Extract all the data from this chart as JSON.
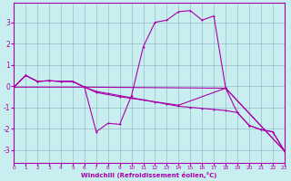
{
  "xlabel": "Windchill (Refroidissement éolien,°C)",
  "bg_color": "#c8eef0",
  "line_color": "#aa00aa",
  "grid_color": "#99bbcc",
  "xlim": [
    0,
    23
  ],
  "ylim": [
    -3.6,
    3.9
  ],
  "yticks": [
    -3,
    -2,
    -1,
    0,
    1,
    2,
    3
  ],
  "xticks": [
    0,
    1,
    2,
    3,
    4,
    5,
    6,
    7,
    8,
    9,
    10,
    11,
    12,
    13,
    14,
    15,
    16,
    17,
    18,
    19,
    20,
    21,
    22,
    23
  ],
  "series1": [
    [
      0,
      -0.05
    ],
    [
      1,
      0.5
    ],
    [
      2,
      0.22
    ],
    [
      3,
      0.25
    ],
    [
      4,
      0.22
    ],
    [
      5,
      0.22
    ],
    [
      6,
      -0.05
    ],
    [
      7,
      -2.15
    ],
    [
      8,
      -1.75
    ],
    [
      9,
      -1.8
    ],
    [
      10,
      -0.45
    ],
    [
      11,
      1.85
    ],
    [
      12,
      3.0
    ],
    [
      13,
      3.1
    ],
    [
      14,
      3.5
    ],
    [
      15,
      3.55
    ],
    [
      16,
      3.1
    ],
    [
      17,
      3.3
    ],
    [
      18,
      -0.1
    ],
    [
      19,
      -1.25
    ],
    [
      20,
      -1.85
    ],
    [
      21,
      -2.05
    ],
    [
      22,
      -2.15
    ],
    [
      23,
      -3.05
    ]
  ],
  "series2": [
    [
      0,
      -0.05
    ],
    [
      1,
      0.5
    ],
    [
      2,
      0.22
    ],
    [
      3,
      0.25
    ],
    [
      4,
      0.22
    ],
    [
      5,
      0.22
    ],
    [
      6,
      -0.05
    ],
    [
      7,
      -0.25
    ],
    [
      8,
      -0.35
    ],
    [
      9,
      -0.45
    ],
    [
      10,
      -0.55
    ],
    [
      11,
      -0.65
    ],
    [
      12,
      -0.75
    ],
    [
      13,
      -0.85
    ],
    [
      14,
      -0.95
    ],
    [
      15,
      -1.0
    ],
    [
      16,
      -1.05
    ],
    [
      17,
      -1.1
    ],
    [
      18,
      -1.15
    ],
    [
      19,
      -1.25
    ],
    [
      20,
      -1.85
    ],
    [
      21,
      -2.05
    ],
    [
      22,
      -2.15
    ],
    [
      23,
      -3.05
    ]
  ],
  "series3": [
    [
      0,
      -0.05
    ],
    [
      1,
      0.5
    ],
    [
      2,
      0.22
    ],
    [
      3,
      0.25
    ],
    [
      4,
      0.22
    ],
    [
      5,
      0.22
    ],
    [
      6,
      -0.05
    ],
    [
      7,
      -0.3
    ],
    [
      9,
      -0.5
    ],
    [
      14,
      -0.9
    ],
    [
      18,
      -0.1
    ],
    [
      23,
      -3.05
    ]
  ],
  "series4": [
    [
      0,
      -0.05
    ],
    [
      6,
      -0.05
    ],
    [
      18,
      -0.1
    ],
    [
      23,
      -3.05
    ]
  ]
}
